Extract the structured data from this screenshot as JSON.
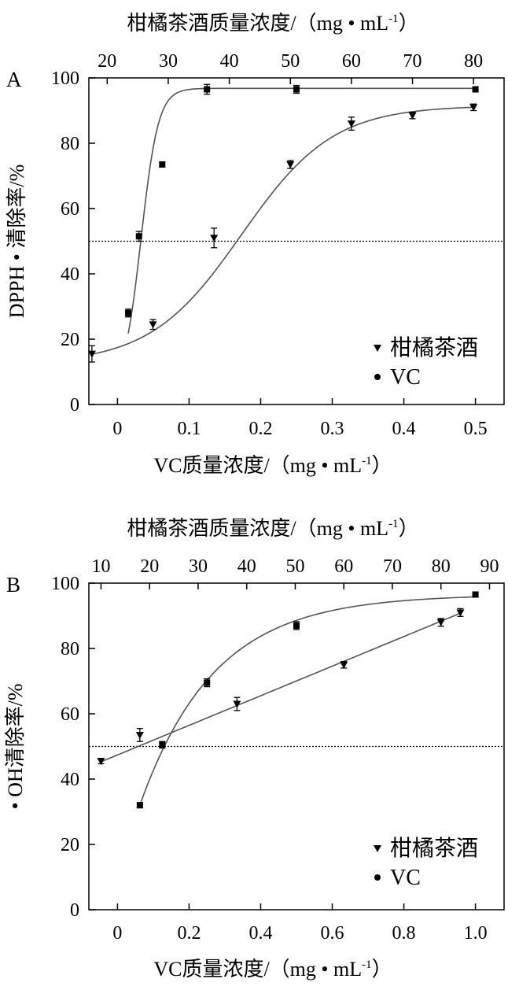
{
  "chart_data": [
    {
      "panel_label": "A",
      "type": "scatter",
      "top_axis_title": "柑橘茶酒质量浓度/（mg • mL",
      "top_axis_sup": "-1",
      "top_axis_close": "）",
      "bottom_axis_title": "VC质量浓度/（mg • mL",
      "bottom_axis_sup": "-1",
      "bottom_axis_close": "）",
      "ylabel": "DPPH • 清除率/%",
      "xlim": [
        -0.04,
        0.54
      ],
      "x_ticks": [
        0,
        0.1,
        0.2,
        0.3,
        0.4,
        0.5
      ],
      "x_tick_labels": [
        "0",
        "0.1",
        "0.2",
        "0.3",
        "0.4",
        "0.5"
      ],
      "top_xlim": [
        17,
        85
      ],
      "top_ticks": [
        20,
        30,
        40,
        50,
        60,
        70,
        80
      ],
      "ylim": [
        0,
        100
      ],
      "y_ticks": [
        0,
        20,
        40,
        60,
        80,
        100
      ],
      "reference_line_y": 50,
      "series": [
        {
          "name": "柑橘茶酒",
          "marker": "triangle-down",
          "x_axis": "top",
          "x": [
            17.5,
            27.5,
            37.5,
            50,
            60,
            70,
            80
          ],
          "y": [
            15.5,
            24.5,
            51,
            73.5,
            86,
            88.5,
            91
          ],
          "err": [
            2.5,
            1.5,
            3,
            1.2,
            2,
            1,
            1
          ],
          "curve": {
            "model": "logistic",
            "bottom": 12.5,
            "top": 91.5,
            "x50": 42,
            "width": 7.5
          }
        },
        {
          "name": "VC",
          "marker": "circle",
          "x_axis": "bottom",
          "x": [
            0.015,
            0.03,
            0.0625,
            0.125,
            0.25,
            0.5
          ],
          "y": [
            28,
            51.5,
            73.5,
            96.5,
            96.5,
            96.5
          ],
          "err": [
            1.2,
            1.5,
            0.8,
            1.5,
            1.2,
            0.8
          ],
          "curve": {
            "model": "logistic",
            "bottom": 5,
            "top": 96.8,
            "x50": 0.033,
            "width": 0.012
          }
        }
      ]
    },
    {
      "panel_label": "B",
      "type": "scatter",
      "top_axis_title": "柑橘茶酒质量浓度/（mg • mL",
      "top_axis_sup": "-1",
      "top_axis_close": "）",
      "bottom_axis_title": "VC质量浓度/（mg • mL",
      "bottom_axis_sup": "-1",
      "bottom_axis_close": "）",
      "ylabel": "• OH清除率/%",
      "xlim": [
        -0.08,
        1.08
      ],
      "x_ticks": [
        0,
        0.2,
        0.4,
        0.6,
        0.8,
        1.0
      ],
      "x_tick_labels": [
        "0",
        "0.2",
        "0.4",
        "0.6",
        "0.8",
        "1.0"
      ],
      "top_xlim": [
        7.5,
        93
      ],
      "top_ticks": [
        10,
        20,
        30,
        40,
        50,
        60,
        70,
        80,
        90
      ],
      "ylim": [
        0,
        100
      ],
      "y_ticks": [
        0,
        20,
        40,
        60,
        80,
        100
      ],
      "reference_line_y": 50,
      "series": [
        {
          "name": "柑橘茶酒",
          "marker": "triangle-down",
          "x_axis": "top",
          "x": [
            10,
            18,
            38,
            60,
            80,
            84
          ],
          "y": [
            45.5,
            53.5,
            63,
            75,
            88,
            91
          ],
          "err": [
            0.8,
            2,
            2,
            1,
            1.2,
            1.2
          ],
          "curve": {
            "model": "linear",
            "x0": 10,
            "y0": 45.3,
            "x1": 84,
            "y1": 90.8
          }
        },
        {
          "name": "VC",
          "marker": "circle",
          "x_axis": "bottom",
          "x": [
            0.0625,
            0.125,
            0.25,
            0.5,
            1.0
          ],
          "y": [
            32,
            50.5,
            69.5,
            87,
            96.5
          ],
          "err": [
            0.8,
            1,
            1.2,
            1.2,
            0.8
          ],
          "curve": {
            "model": "saturation",
            "x_start": 0.0625,
            "y_start": 32,
            "top": 96.5,
            "k": 4.8
          }
        }
      ]
    }
  ]
}
